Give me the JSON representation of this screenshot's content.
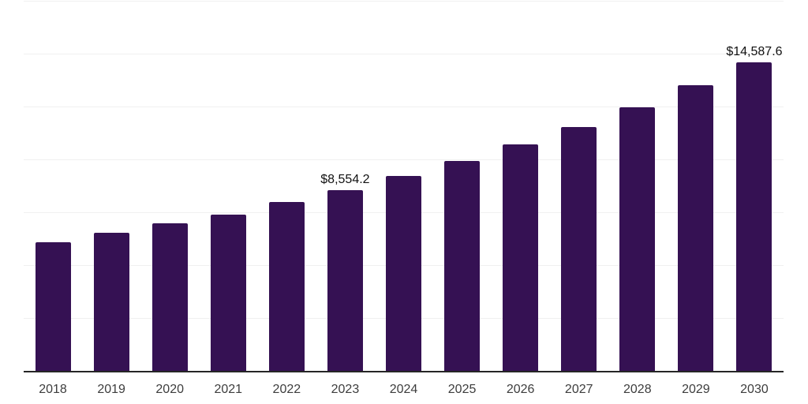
{
  "chart": {
    "bar_color": "#351153",
    "grid_color": "#f0f0f0",
    "axis_color": "#262626",
    "tick_label_color": "#3d3d3d",
    "data_label_color": "#111111",
    "background_color": "#ffffff"
  },
  "chart_data": {
    "type": "bar",
    "categories": [
      "2018",
      "2019",
      "2020",
      "2021",
      "2022",
      "2023",
      "2024",
      "2025",
      "2026",
      "2027",
      "2028",
      "2029",
      "2030"
    ],
    "values": [
      6090,
      6550,
      7000,
      7410,
      7990,
      8554.2,
      9235,
      9940,
      10720,
      11540,
      12475,
      13515,
      14587.6
    ],
    "data_labels": [
      {
        "category": "2023",
        "text": "$8,554.2"
      },
      {
        "category": "2030",
        "text": "$14,587.6"
      }
    ],
    "title": "",
    "xlabel": "",
    "ylabel": "",
    "ylim": [
      0,
      17500
    ],
    "grid": true,
    "gridline_step": 2500,
    "y_tick_labels_visible": false,
    "legend": false
  }
}
